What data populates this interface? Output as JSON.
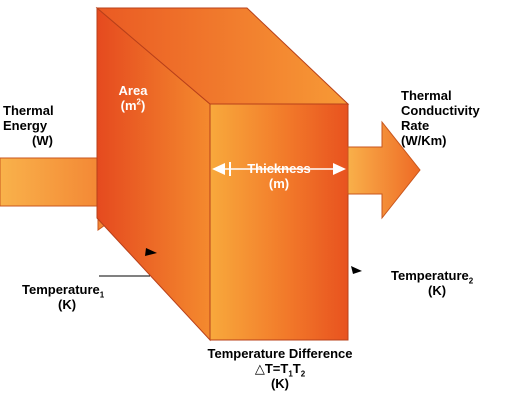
{
  "labels": {
    "area_line1": "Area",
    "area_line2_prefix": "(m",
    "area_line2_sup": "2",
    "area_line2_suffix": ")",
    "thermal_energy_line1": "Thermal",
    "thermal_energy_line2": "Energy",
    "thermal_energy_unit": "(W)",
    "thickness_line1": "Thickness",
    "thickness_line2": "(m)",
    "conductivity_line1": "Thermal",
    "conductivity_line2": "Conductivity",
    "conductivity_line3": "Rate",
    "conductivity_unit": "(W/Km)",
    "temp1_text": "Temperature",
    "temp1_sub": "1",
    "temp1_unit": "(K)",
    "temp2_text": "Temperature",
    "temp2_sub": "2",
    "temp2_unit": "(K)",
    "diff_title": "Temperature Difference",
    "diff_formula_delta": "△T=T",
    "diff_formula_sub1": "1",
    "diff_formula_t2": "T",
    "diff_formula_sub2": "2",
    "diff_unit": "(K)"
  },
  "colors": {
    "block_dark": "#e8461f",
    "block_light": "#f7a53a",
    "arrow_light": "#f9b04a",
    "arrow_dark": "#ef6a25",
    "text": "#000000",
    "text_on_block": "#ffffff"
  }
}
